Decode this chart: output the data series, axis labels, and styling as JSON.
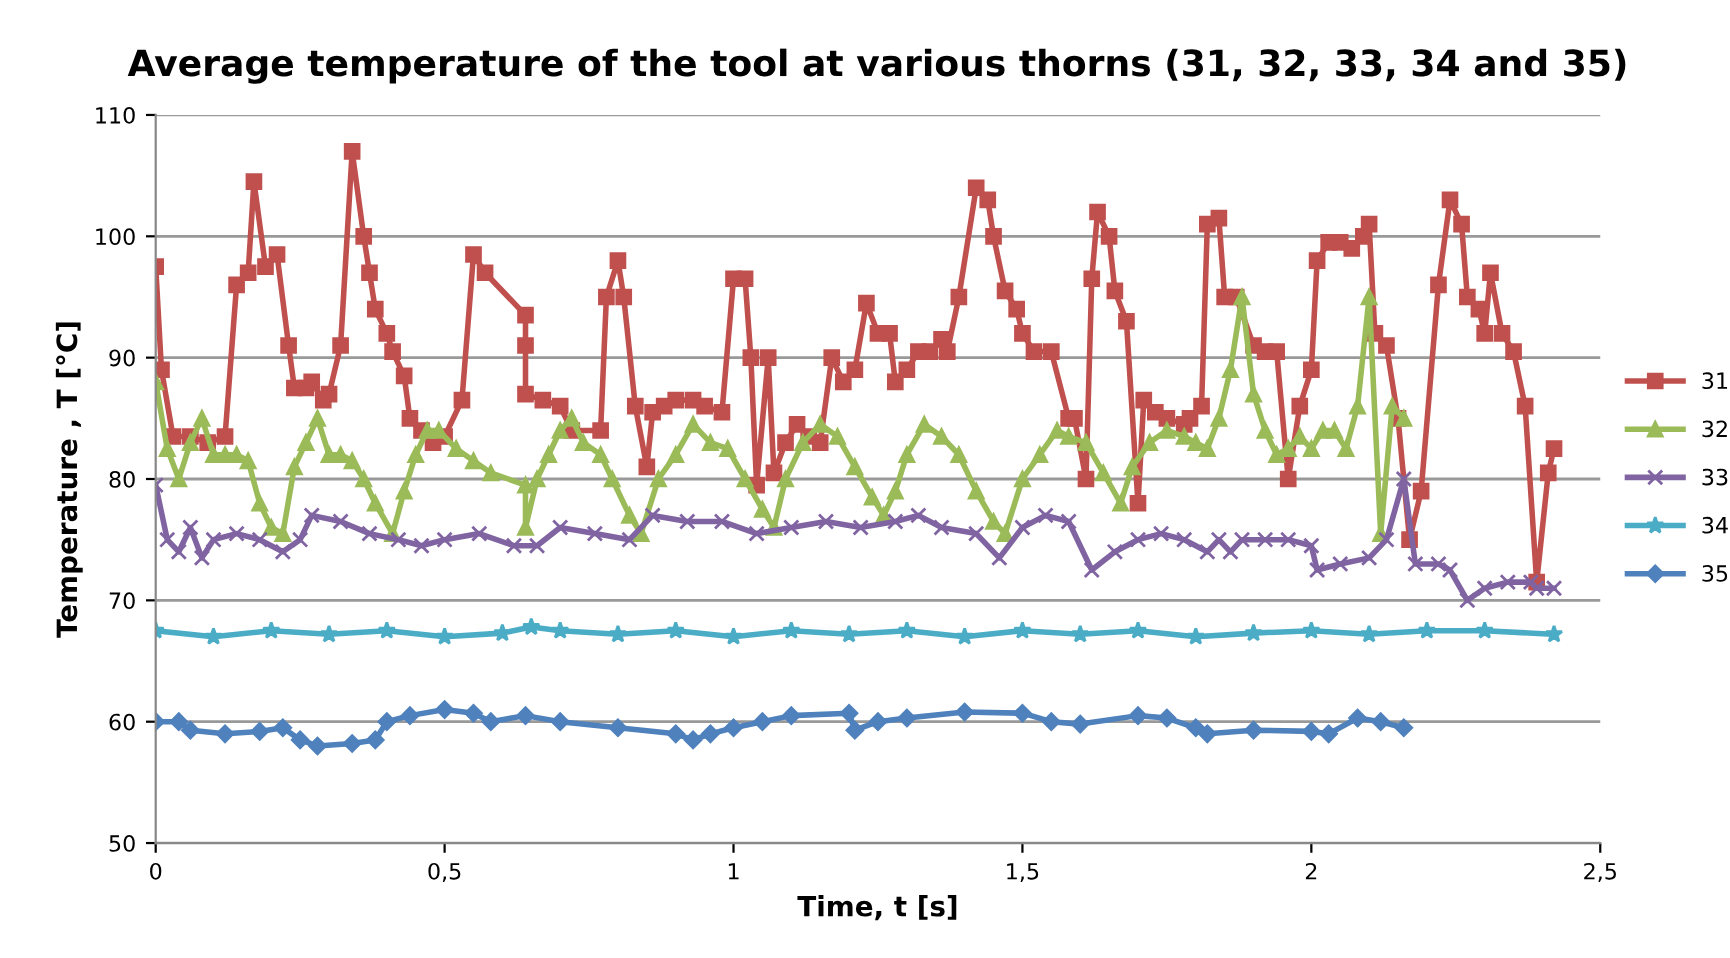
{
  "chart_data": {
    "type": "line",
    "title": "Average temperature of the tool at various thorns (31, 32, 33, 34 and 35)",
    "xlabel": "Time, t [s]",
    "ylabel": "Temperature , T [°C]",
    "xlim": [
      0,
      2.5
    ],
    "xticks": [
      0,
      {
        "value": 0.5,
        "label": "0,5"
      },
      1,
      {
        "value": 1.5,
        "label": "1,5"
      },
      2,
      {
        "value": 2.5,
        "label": "2,5"
      }
    ],
    "ylim": [
      50,
      110
    ],
    "yticks": [
      50,
      60,
      70,
      80,
      90,
      100,
      110
    ],
    "grid": "y",
    "legend": "right",
    "series": [
      {
        "name": "31",
        "color": "#c0504d",
        "marker": "square",
        "x": [
          0,
          0.01,
          0.03,
          0.06,
          0.09,
          0.12,
          0.14,
          0.16,
          0.17,
          0.19,
          0.21,
          0.23,
          0.24,
          0.26,
          0.27,
          0.29,
          0.3,
          0.32,
          0.34,
          0.36,
          0.37,
          0.38,
          0.4,
          0.41,
          0.43,
          0.44,
          0.46,
          0.48,
          0.5,
          0.53,
          0.55,
          0.57,
          0.64,
          0.64,
          0.64,
          0.67,
          0.7,
          0.72,
          0.77,
          0.78,
          0.8,
          0.81,
          0.83,
          0.85,
          0.86,
          0.88,
          0.9,
          0.93,
          0.95,
          0.98,
          1.0,
          1.02,
          1.03,
          1.04,
          1.06,
          1.07,
          1.09,
          1.11,
          1.13,
          1.15,
          1.17,
          1.19,
          1.21,
          1.23,
          1.25,
          1.27,
          1.28,
          1.3,
          1.32,
          1.34,
          1.36,
          1.37,
          1.39,
          1.42,
          1.44,
          1.45,
          1.47,
          1.49,
          1.5,
          1.52,
          1.55,
          1.58,
          1.59,
          1.61,
          1.62,
          1.63,
          1.65,
          1.66,
          1.68,
          1.7,
          1.71,
          1.73,
          1.75,
          1.78,
          1.79,
          1.81,
          1.82,
          1.84,
          1.85,
          1.87,
          1.9,
          1.92,
          1.94,
          1.96,
          1.98,
          2.0,
          2.01,
          2.03,
          2.05,
          2.07,
          2.09,
          2.1,
          2.11,
          2.13,
          2.15,
          2.17,
          2.19,
          2.22,
          2.24,
          2.26,
          2.27,
          2.29,
          2.3,
          2.31,
          2.33,
          2.35,
          2.37,
          2.39,
          2.41,
          2.42
        ],
        "values": [
          97.5,
          89,
          83.5,
          83.5,
          83,
          83.5,
          96,
          97,
          104.5,
          97.5,
          98.5,
          91,
          87.5,
          87.5,
          88,
          86.5,
          87,
          91,
          107,
          100,
          97,
          94,
          92,
          90.5,
          88.5,
          85,
          84,
          83,
          83.5,
          86.5,
          98.5,
          97,
          93.5,
          91,
          87,
          86.5,
          86,
          84,
          84,
          95,
          98,
          95,
          86,
          81,
          85.5,
          86,
          86.5,
          86.5,
          86,
          85.5,
          96.5,
          96.5,
          90,
          79.5,
          90,
          80.5,
          83,
          84.5,
          83.5,
          83,
          90,
          88,
          89,
          94.5,
          92,
          92,
          88,
          89,
          90.5,
          90.5,
          91.5,
          90.5,
          95,
          104,
          103,
          100,
          95.5,
          94,
          92,
          90.5,
          90.5,
          85,
          85,
          80,
          96.5,
          102,
          100,
          95.5,
          93,
          78,
          86.5,
          85.5,
          85,
          84.5,
          85,
          86,
          101,
          101.5,
          95,
          95,
          91,
          90.5,
          90.5,
          80,
          86,
          89,
          98,
          99.5,
          99.5,
          99,
          100,
          101,
          92,
          91,
          85,
          75,
          79,
          96,
          103,
          101,
          95,
          94,
          92,
          97,
          92,
          90.5,
          86,
          71.5,
          80.5,
          82.5
        ]
      },
      {
        "name": "32",
        "color": "#9bbb59",
        "marker": "triangle",
        "x": [
          0,
          0.02,
          0.04,
          0.06,
          0.08,
          0.1,
          0.12,
          0.14,
          0.16,
          0.18,
          0.2,
          0.22,
          0.24,
          0.26,
          0.28,
          0.3,
          0.32,
          0.34,
          0.36,
          0.38,
          0.41,
          0.43,
          0.45,
          0.47,
          0.49,
          0.52,
          0.55,
          0.58,
          0.64,
          0.64,
          0.66,
          0.68,
          0.7,
          0.72,
          0.74,
          0.77,
          0.79,
          0.82,
          0.84,
          0.87,
          0.9,
          0.93,
          0.96,
          0.99,
          1.02,
          1.05,
          1.07,
          1.09,
          1.12,
          1.15,
          1.18,
          1.21,
          1.24,
          1.26,
          1.28,
          1.3,
          1.33,
          1.36,
          1.39,
          1.42,
          1.45,
          1.47,
          1.5,
          1.53,
          1.56,
          1.58,
          1.61,
          1.64,
          1.67,
          1.69,
          1.72,
          1.75,
          1.78,
          1.8,
          1.82,
          1.84,
          1.86,
          1.88,
          1.9,
          1.92,
          1.94,
          1.96,
          1.98,
          2.0,
          2.02,
          2.04,
          2.06,
          2.08,
          2.1,
          2.12,
          2.14,
          2.16
        ],
        "values": [
          88,
          82.5,
          80,
          83,
          85,
          82,
          82,
          82,
          81.5,
          78,
          76,
          75.5,
          81,
          83,
          85,
          82,
          82,
          81.5,
          80,
          78,
          75.5,
          79,
          82,
          84,
          84,
          82.5,
          81.5,
          80.5,
          79.5,
          76,
          80,
          82,
          84,
          85,
          83,
          82,
          80,
          77,
          75.5,
          80,
          82,
          84.5,
          83,
          82.5,
          80,
          77.5,
          76,
          80,
          83,
          84.5,
          83.5,
          81,
          78.5,
          77,
          79,
          82,
          84.5,
          83.5,
          82,
          79,
          76.5,
          75.5,
          80,
          82,
          84,
          83.5,
          83,
          80.5,
          78,
          81,
          83,
          84,
          83.5,
          83,
          82.5,
          85,
          89,
          95,
          87,
          84,
          82,
          82.5,
          83.5,
          82.5,
          84,
          84,
          82.5,
          86,
          95,
          75.5,
          86,
          85
        ]
      },
      {
        "name": "33",
        "color": "#8064a2",
        "marker": "cross",
        "x": [
          0,
          0.02,
          0.04,
          0.06,
          0.08,
          0.1,
          0.14,
          0.18,
          0.22,
          0.25,
          0.27,
          0.32,
          0.37,
          0.42,
          0.46,
          0.5,
          0.56,
          0.62,
          0.66,
          0.7,
          0.76,
          0.82,
          0.86,
          0.92,
          0.98,
          1.04,
          1.1,
          1.16,
          1.22,
          1.28,
          1.32,
          1.36,
          1.42,
          1.46,
          1.5,
          1.54,
          1.58,
          1.62,
          1.66,
          1.7,
          1.74,
          1.78,
          1.82,
          1.84,
          1.86,
          1.88,
          1.92,
          1.96,
          2.0,
          2.01,
          2.05,
          2.1,
          2.13,
          2.16,
          2.18,
          2.22,
          2.24,
          2.27,
          2.3,
          2.34,
          2.38,
          2.39,
          2.42
        ],
        "values": [
          79.5,
          75,
          74,
          76,
          73.5,
          75,
          75.5,
          75,
          74,
          75,
          77,
          76.5,
          75.5,
          75,
          74.5,
          75,
          75.5,
          74.5,
          74.5,
          76,
          75.5,
          75,
          77,
          76.5,
          76.5,
          75.5,
          76,
          76.5,
          76,
          76.5,
          77,
          76,
          75.5,
          73.5,
          76,
          77,
          76.5,
          72.5,
          74,
          75,
          75.5,
          75,
          74,
          75,
          74,
          75,
          75,
          75,
          74.5,
          72.5,
          73,
          73.5,
          75,
          80,
          73,
          73,
          72.5,
          70,
          71,
          71.5,
          71.5,
          71,
          71
        ]
      },
      {
        "name": "34",
        "color": "#4bacc6",
        "marker": "star",
        "x": [
          0,
          0.1,
          0.2,
          0.3,
          0.4,
          0.5,
          0.6,
          0.65,
          0.7,
          0.8,
          0.9,
          1.0,
          1.1,
          1.2,
          1.3,
          1.4,
          1.5,
          1.6,
          1.7,
          1.8,
          1.9,
          2.0,
          2.1,
          2.2,
          2.3,
          2.42
        ],
        "values": [
          67.5,
          67,
          67.5,
          67.2,
          67.5,
          67,
          67.3,
          67.8,
          67.5,
          67.2,
          67.5,
          67,
          67.5,
          67.2,
          67.5,
          67,
          67.5,
          67.2,
          67.5,
          67,
          67.3,
          67.5,
          67.2,
          67.5,
          67.5,
          67.2
        ]
      },
      {
        "name": "35",
        "color": "#4f81bd",
        "marker": "diamond",
        "x": [
          0,
          0.04,
          0.06,
          0.12,
          0.18,
          0.22,
          0.25,
          0.28,
          0.34,
          0.38,
          0.4,
          0.44,
          0.5,
          0.55,
          0.58,
          0.64,
          0.7,
          0.8,
          0.9,
          0.93,
          0.96,
          1.0,
          1.05,
          1.1,
          1.2,
          1.21,
          1.25,
          1.3,
          1.4,
          1.5,
          1.55,
          1.6,
          1.7,
          1.75,
          1.8,
          1.82,
          1.9,
          2.0,
          2.03,
          2.08,
          2.12,
          2.16
        ],
        "values": [
          60,
          60,
          59.3,
          59,
          59.2,
          59.5,
          58.5,
          58,
          58.2,
          58.5,
          60,
          60.5,
          61,
          60.7,
          60,
          60.5,
          60,
          59.5,
          59,
          58.5,
          59,
          59.5,
          60,
          60.5,
          60.7,
          59.3,
          60,
          60.3,
          60.8,
          60.7,
          60,
          59.8,
          60.5,
          60.3,
          59.5,
          59,
          59.3,
          59.2,
          59,
          60.3,
          60,
          59.5
        ]
      }
    ]
  }
}
